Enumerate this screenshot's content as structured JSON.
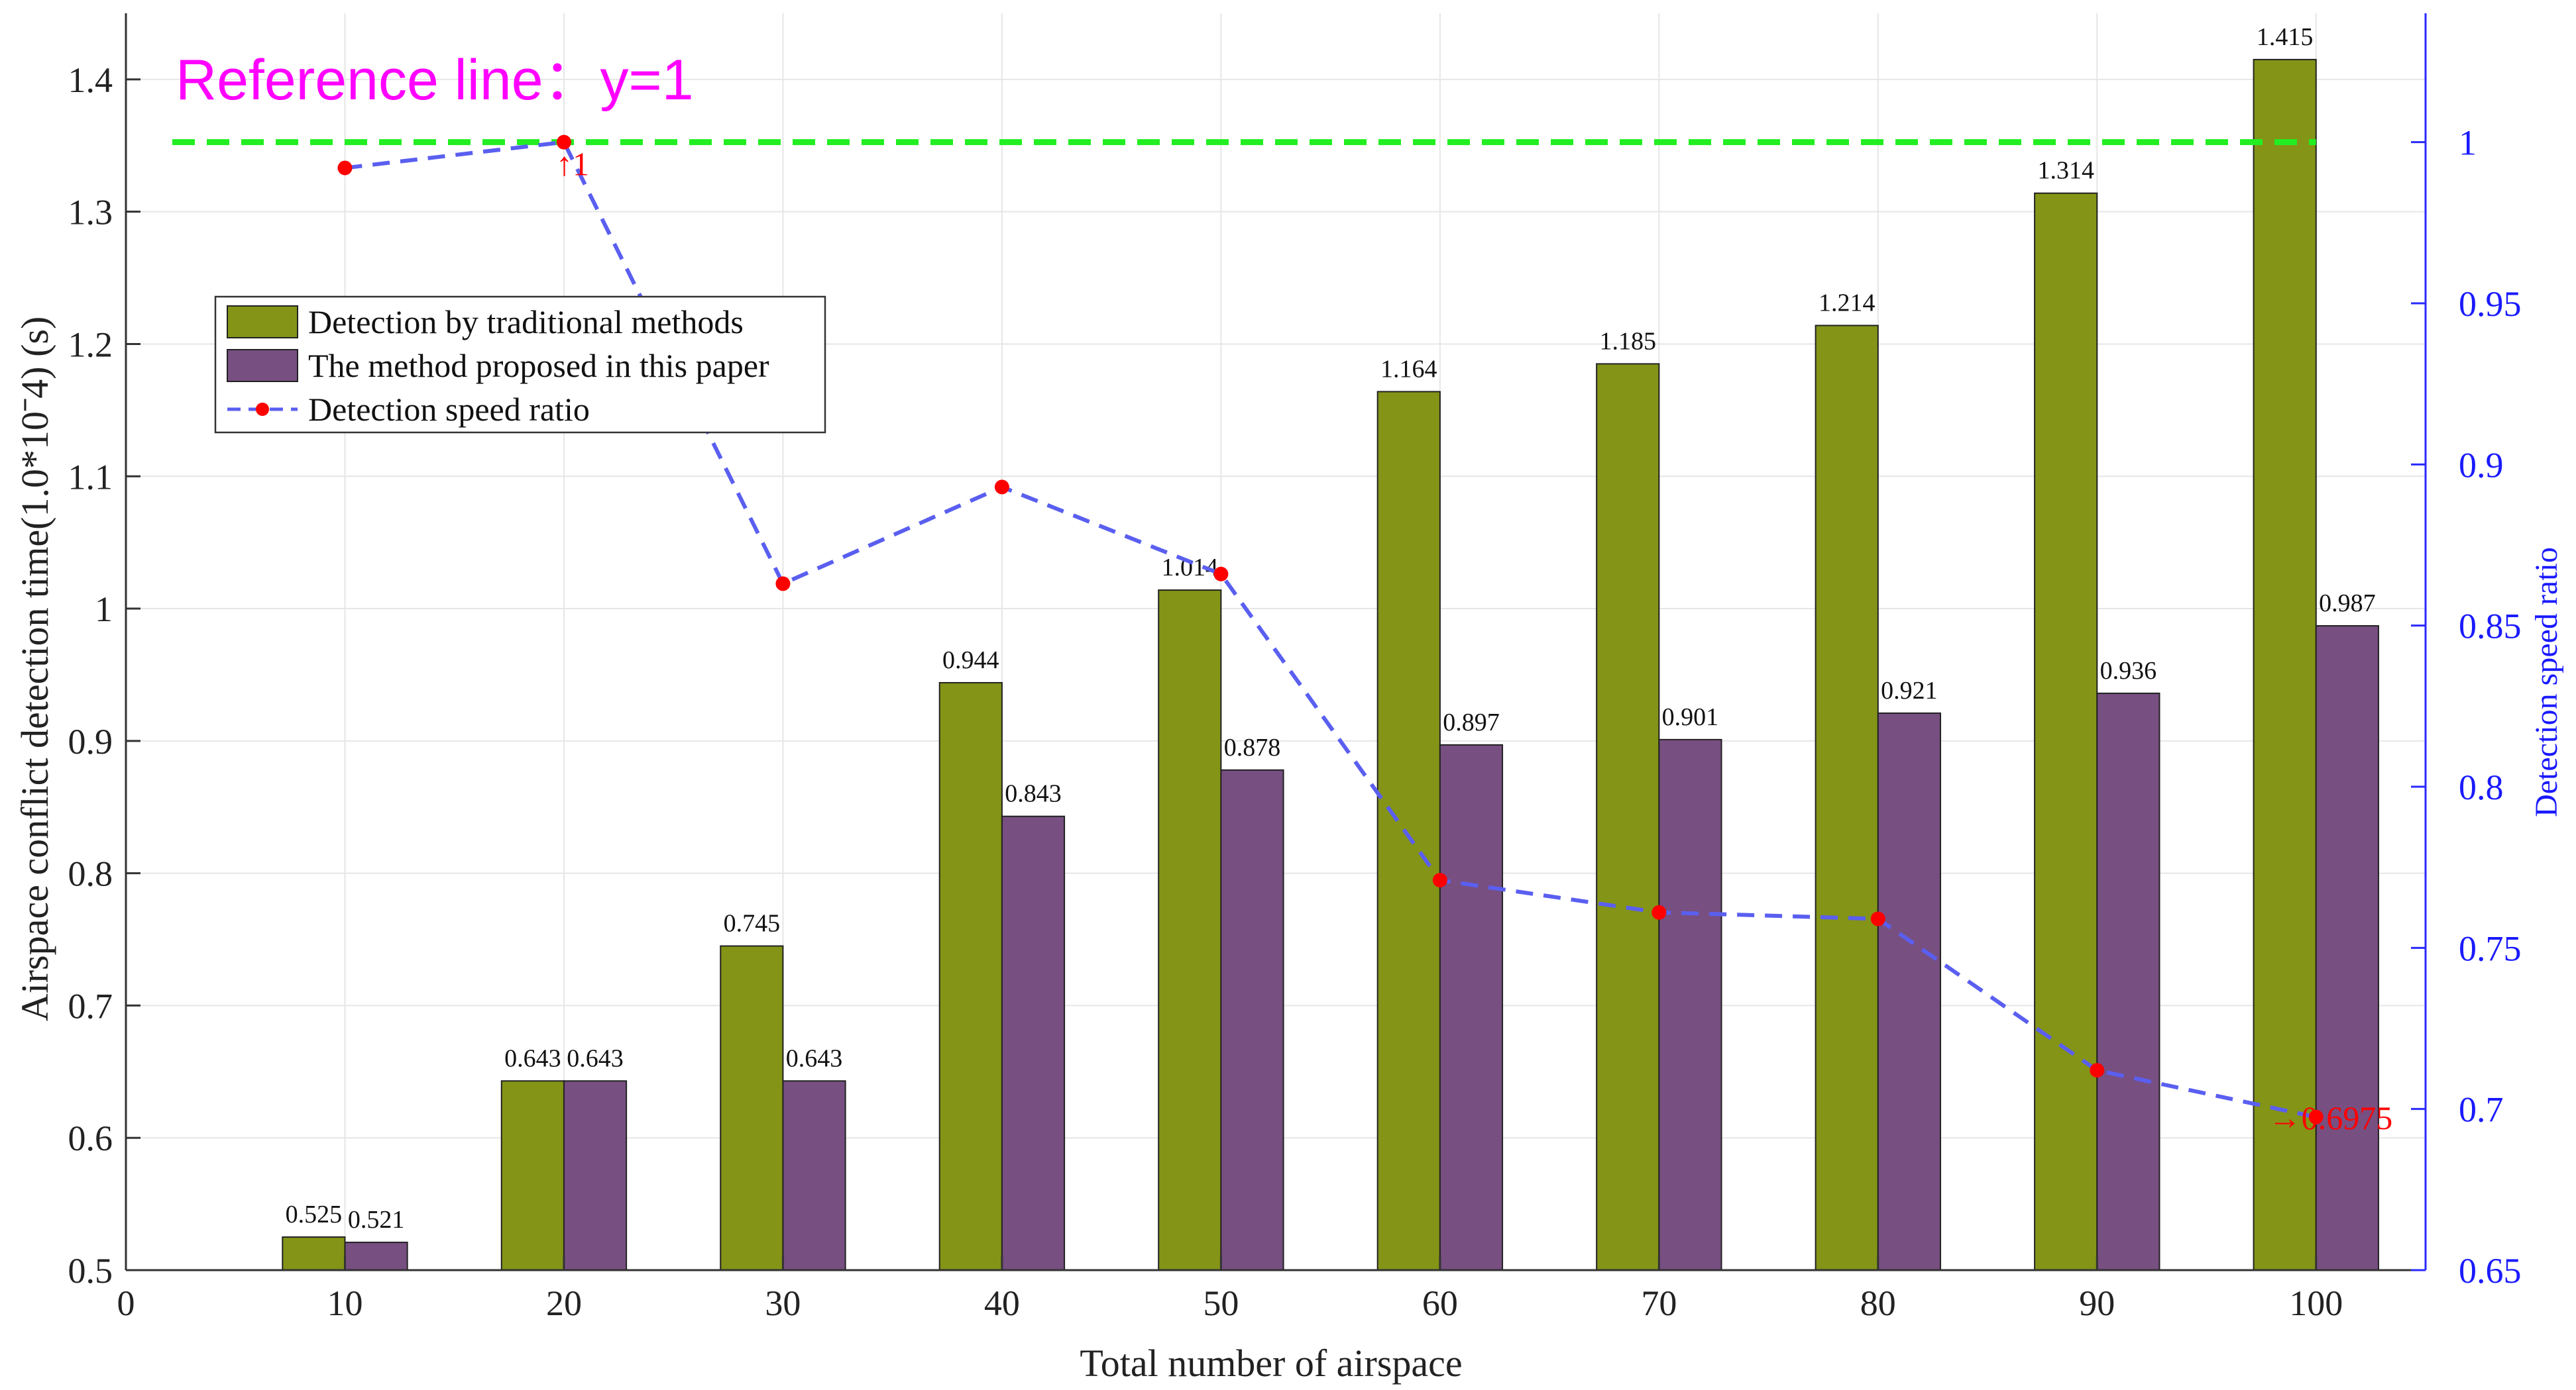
{
  "chart_data": {
    "type": "bar",
    "categories": [
      "10",
      "20",
      "30",
      "40",
      "50",
      "60",
      "70",
      "80",
      "90",
      "100"
    ],
    "xlabel": "Total number of airspace",
    "ylabel": "Airspace conflict detection time(1.0*10ˉ4)  (s)",
    "y2label": "Detection speed ratio",
    "xlim": [
      0,
      105
    ],
    "ylim": [
      0.5,
      1.45
    ],
    "y2lim": [
      0.65,
      1.04
    ],
    "x_ticks": [
      "0",
      "10",
      "20",
      "30",
      "40",
      "50",
      "60",
      "70",
      "80",
      "90",
      "100"
    ],
    "y_ticks": [
      "0.5",
      "0.6",
      "0.7",
      "0.8",
      "0.9",
      "1",
      "1.1",
      "1.2",
      "1.3",
      "1.4"
    ],
    "y2_ticks": [
      "0.65",
      "0.7",
      "0.75",
      "0.8",
      "0.85",
      "0.9",
      "0.95",
      "1"
    ],
    "grid": true,
    "legend_position": "upper-left",
    "series": [
      {
        "name": "Detection by traditional methods",
        "kind": "bar",
        "color": "#849417",
        "values": [
          0.525,
          0.643,
          0.745,
          0.944,
          1.014,
          1.164,
          1.185,
          1.214,
          1.314,
          1.415
        ],
        "labels": [
          "0.525",
          "0.643",
          "0.745",
          "0.944",
          "1.014",
          "1.164",
          "1.185",
          "1.214",
          "1.314",
          "1.415"
        ]
      },
      {
        "name": "The method proposed in this paper",
        "kind": "bar",
        "color": "#774f81",
        "values": [
          0.521,
          0.643,
          0.643,
          0.843,
          0.878,
          0.897,
          0.901,
          0.921,
          0.936,
          0.987
        ],
        "labels": [
          "0.521",
          "0.643",
          "0.643",
          "0.843",
          "0.878",
          "0.897",
          "0.901",
          "0.921",
          "0.936",
          "0.987"
        ]
      },
      {
        "name": "Detection speed ratio",
        "kind": "line",
        "axis": "right",
        "color": "#5a5ff0",
        "marker_color": "#ff0000",
        "values": [
          0.992,
          1.0,
          0.863,
          0.893,
          0.866,
          0.771,
          0.761,
          0.759,
          0.712,
          0.6975
        ]
      }
    ],
    "reference_line": {
      "label": "Reference line：y=1",
      "value": 1,
      "color": "#22ee22",
      "label_color": "#ff00ff"
    },
    "annotations": [
      {
        "text": "↑1",
        "category": "20"
      },
      {
        "text": "→0.6975",
        "category": "100"
      }
    ]
  }
}
